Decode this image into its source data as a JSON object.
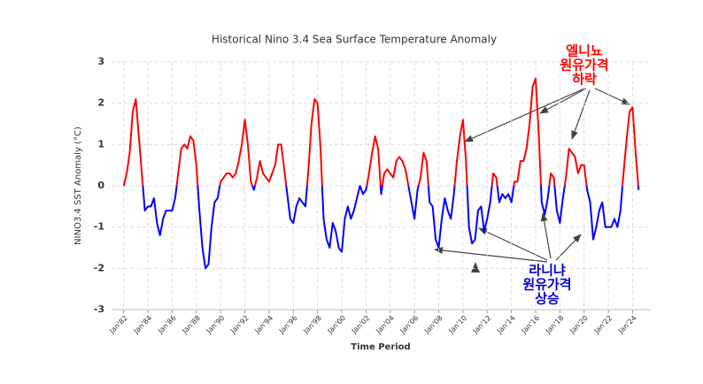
{
  "chart_data": {
    "type": "line",
    "title": "Historical Nino 3.4 Sea Surface Temperature Anomaly",
    "xlabel": "Time Period",
    "ylabel": "NINO3.4 SST Anomaly (°C)",
    "xlim": [
      1981,
      2025.5
    ],
    "ylim": [
      -3,
      3
    ],
    "yticks": [
      -3,
      -2,
      -1,
      0,
      1,
      2,
      3
    ],
    "xticks": [
      {
        "value": 1982,
        "label": "Jan'82"
      },
      {
        "value": 1984,
        "label": "Jan'84"
      },
      {
        "value": 1986,
        "label": "Jan'86"
      },
      {
        "value": 1988,
        "label": "Jan'88"
      },
      {
        "value": 1990,
        "label": "Jan'90"
      },
      {
        "value": 1992,
        "label": "Jan'92"
      },
      {
        "value": 1994,
        "label": "Jan'94"
      },
      {
        "value": 1996,
        "label": "Jan'96"
      },
      {
        "value": 1998,
        "label": "Jan'98"
      },
      {
        "value": 2000,
        "label": "Jan'00"
      },
      {
        "value": 2002,
        "label": "Jan'02"
      },
      {
        "value": 2004,
        "label": "Jan'04"
      },
      {
        "value": 2006,
        "label": "Jan'06"
      },
      {
        "value": 2008,
        "label": "Jan'08"
      },
      {
        "value": 2010,
        "label": "Jan'10"
      },
      {
        "value": 2012,
        "label": "Jan'12"
      },
      {
        "value": 2014,
        "label": "Jan'14"
      },
      {
        "value": 2016,
        "label": "Jan'16"
      },
      {
        "value": 2018,
        "label": "Jan'18"
      },
      {
        "value": 2020,
        "label": "Jan'20"
      },
      {
        "value": 2022,
        "label": "Jan'22"
      },
      {
        "value": 2024,
        "label": "Jan'24"
      }
    ],
    "grid": true,
    "color_positive": "#ff0000",
    "color_negative": "#0000ff",
    "x": [
      1982,
      1982.25,
      1982.5,
      1982.75,
      1983,
      1983.25,
      1983.5,
      1983.75,
      1984,
      1984.25,
      1984.5,
      1984.75,
      1985,
      1985.25,
      1985.5,
      1985.75,
      1986,
      1986.25,
      1986.5,
      1986.75,
      1987,
      1987.25,
      1987.5,
      1987.75,
      1988,
      1988.25,
      1988.5,
      1988.75,
      1989,
      1989.25,
      1989.5,
      1989.75,
      1990,
      1990.25,
      1990.5,
      1990.75,
      1991,
      1991.25,
      1991.5,
      1991.75,
      1992,
      1992.25,
      1992.5,
      1992.75,
      1993,
      1993.25,
      1993.5,
      1993.75,
      1994,
      1994.25,
      1994.5,
      1994.75,
      1995,
      1995.25,
      1995.5,
      1995.75,
      1996,
      1996.25,
      1996.5,
      1996.75,
      1997,
      1997.25,
      1997.5,
      1997.75,
      1998,
      1998.25,
      1998.5,
      1998.75,
      1999,
      1999.25,
      1999.5,
      1999.75,
      2000,
      2000.25,
      2000.5,
      2000.75,
      2001,
      2001.25,
      2001.5,
      2001.75,
      2002,
      2002.25,
      2002.5,
      2002.75,
      2003,
      2003.25,
      2003.5,
      2003.75,
      2004,
      2004.25,
      2004.5,
      2004.75,
      2005,
      2005.25,
      2005.5,
      2005.75,
      2006,
      2006.25,
      2006.5,
      2006.75,
      2007,
      2007.25,
      2007.5,
      2007.75,
      2008,
      2008.25,
      2008.5,
      2008.75,
      2009,
      2009.25,
      2009.5,
      2009.75,
      2010,
      2010.25,
      2010.5,
      2010.75,
      2011,
      2011.25,
      2011.5,
      2011.75,
      2012,
      2012.25,
      2012.5,
      2012.75,
      2013,
      2013.25,
      2013.5,
      2013.75,
      2014,
      2014.25,
      2014.5,
      2014.75,
      2015,
      2015.25,
      2015.5,
      2015.75,
      2016,
      2016.25,
      2016.5,
      2016.75,
      2017,
      2017.25,
      2017.5,
      2017.75,
      2018,
      2018.25,
      2018.5,
      2018.75,
      2019,
      2019.25,
      2019.5,
      2019.75,
      2020,
      2020.25,
      2020.5,
      2020.75,
      2021,
      2021.25,
      2021.5,
      2021.75,
      2022,
      2022.25,
      2022.5,
      2022.75,
      2023,
      2023.25,
      2023.5,
      2023.75,
      2024,
      2024.25,
      2024.5
    ],
    "series": [
      {
        "values": [
          0.0,
          0.3,
          0.8,
          1.8,
          2.1,
          1.2,
          0.3,
          -0.6,
          -0.5,
          -0.5,
          -0.3,
          -0.9,
          -1.2,
          -0.8,
          -0.6,
          -0.6,
          -0.6,
          -0.3,
          0.3,
          0.9,
          1.0,
          0.9,
          1.2,
          1.1,
          0.5,
          -0.6,
          -1.5,
          -2.0,
          -1.9,
          -1.0,
          -0.4,
          -0.3,
          0.1,
          0.2,
          0.3,
          0.3,
          0.2,
          0.3,
          0.6,
          1.0,
          1.6,
          1.0,
          0.1,
          -0.1,
          0.2,
          0.6,
          0.3,
          0.2,
          0.1,
          0.3,
          0.5,
          1.0,
          1.0,
          0.4,
          -0.2,
          -0.8,
          -0.9,
          -0.5,
          -0.3,
          -0.4,
          -0.5,
          0.4,
          1.5,
          2.1,
          2.0,
          0.9,
          -0.8,
          -1.3,
          -1.5,
          -0.9,
          -1.1,
          -1.5,
          -1.6,
          -0.8,
          -0.5,
          -0.8,
          -0.6,
          -0.3,
          0.0,
          -0.2,
          -0.1,
          0.3,
          0.8,
          1.2,
          0.9,
          -0.2,
          0.3,
          0.4,
          0.3,
          0.2,
          0.6,
          0.7,
          0.6,
          0.4,
          0.0,
          -0.4,
          -0.8,
          -0.1,
          0.2,
          0.8,
          0.6,
          -0.4,
          -0.5,
          -1.3,
          -1.5,
          -0.8,
          -0.3,
          -0.6,
          -0.8,
          -0.2,
          0.6,
          1.2,
          1.6,
          0.6,
          -1.0,
          -1.4,
          -1.3,
          -0.6,
          -0.5,
          -1.1,
          -0.8,
          -0.4,
          0.3,
          0.2,
          -0.4,
          -0.2,
          -0.3,
          -0.2,
          -0.4,
          0.1,
          0.1,
          0.6,
          0.6,
          0.9,
          1.5,
          2.4,
          2.6,
          1.3,
          -0.4,
          -0.7,
          -0.3,
          0.3,
          0.2,
          -0.6,
          -0.9,
          -0.3,
          0.2,
          0.9,
          0.8,
          0.7,
          0.3,
          0.5,
          0.5,
          -0.1,
          -0.4,
          -1.3,
          -1.0,
          -0.6,
          -0.4,
          -1.0,
          -1.0,
          -1.0,
          -0.8,
          -1.0,
          -0.6,
          0.3,
          1.1,
          1.8,
          1.9,
          0.8,
          -0.1
        ]
      }
    ],
    "annotations": [
      {
        "lines": [
          "엘니뇨",
          "원유가격",
          "하락"
        ],
        "color": "#ff0000"
      },
      {
        "lines": [
          "라니냐",
          "원유가격",
          "상승"
        ],
        "color": "#0000cc"
      }
    ]
  }
}
